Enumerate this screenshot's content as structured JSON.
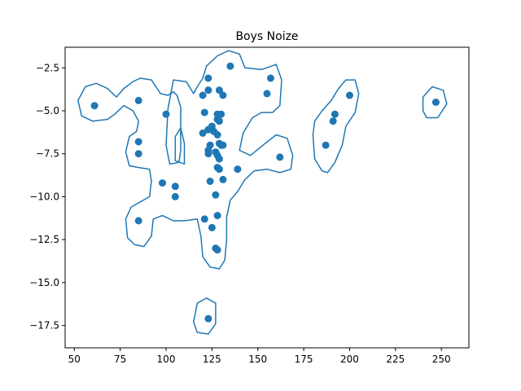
{
  "chart_data": {
    "type": "scatter",
    "title": "Boys Noize",
    "xlabel": "",
    "ylabel": "",
    "xlim": [
      45,
      265
    ],
    "ylim": [
      -18.8,
      -1.3
    ],
    "xticks": [
      50,
      75,
      100,
      125,
      150,
      175,
      200,
      225,
      250
    ],
    "yticks": [
      -2.5,
      -5.0,
      -7.5,
      -10.0,
      -12.5,
      -15.0,
      -17.5
    ],
    "xtick_labels": [
      "50",
      "75",
      "100",
      "125",
      "150",
      "175",
      "200",
      "225",
      "250"
    ],
    "ytick_labels": [
      "−2.5",
      "−5.0",
      "−7.5",
      "−10.0",
      "−12.5",
      "−15.0",
      "−17.5"
    ],
    "grid": false,
    "point_color": "#1f77b4",
    "contour_color": "#1f77b4",
    "points": [
      [
        61,
        -4.7
      ],
      [
        85,
        -4.4
      ],
      [
        85,
        -6.8
      ],
      [
        85,
        -7.5
      ],
      [
        85,
        -11.4
      ],
      [
        98,
        -9.2
      ],
      [
        100,
        -5.2
      ],
      [
        105,
        -9.4
      ],
      [
        105,
        -10.0
      ],
      [
        120,
        -4.1
      ],
      [
        120,
        -6.3
      ],
      [
        121,
        -5.1
      ],
      [
        121,
        -11.3
      ],
      [
        123,
        -3.1
      ],
      [
        123,
        -3.8
      ],
      [
        123,
        -6.1
      ],
      [
        123,
        -7.3
      ],
      [
        123,
        -7.5
      ],
      [
        123,
        -17.1
      ],
      [
        124,
        -7.0
      ],
      [
        124,
        -9.1
      ],
      [
        125,
        -5.9
      ],
      [
        125,
        -11.8
      ],
      [
        126,
        -6.2
      ],
      [
        127,
        -7.4
      ],
      [
        127,
        -9.9
      ],
      [
        127,
        -13.0
      ],
      [
        128,
        -5.2
      ],
      [
        128,
        -5.5
      ],
      [
        128,
        -6.4
      ],
      [
        128,
        -7.6
      ],
      [
        128,
        -8.3
      ],
      [
        128,
        -11.1
      ],
      [
        128,
        -13.1
      ],
      [
        129,
        -3.8
      ],
      [
        129,
        -5.6
      ],
      [
        129,
        -6.9
      ],
      [
        129,
        -7.8
      ],
      [
        129,
        -8.4
      ],
      [
        130,
        -5.2
      ],
      [
        130,
        -7.0
      ],
      [
        131,
        -4.1
      ],
      [
        131,
        -7.0
      ],
      [
        131,
        -9.0
      ],
      [
        135,
        -2.4
      ],
      [
        139,
        -8.4
      ],
      [
        155,
        -4.0
      ],
      [
        157,
        -3.1
      ],
      [
        162,
        -7.7
      ],
      [
        187,
        -7.0
      ],
      [
        191,
        -5.6
      ],
      [
        192,
        -5.2
      ],
      [
        200,
        -4.1
      ],
      [
        247,
        -4.5
      ]
    ],
    "contours": [
      [
        [
          102,
          -8.1
        ],
        [
          100,
          -7.0
        ],
        [
          101,
          -4.9
        ],
        [
          104,
          -3.2
        ],
        [
          111,
          -3.3
        ],
        [
          115,
          -4.0
        ],
        [
          117,
          -3.6
        ],
        [
          120,
          -3.1
        ],
        [
          122,
          -2.4
        ],
        [
          128,
          -1.8
        ],
        [
          134,
          -1.5
        ],
        [
          140,
          -1.7
        ],
        [
          143,
          -2.5
        ],
        [
          152,
          -2.6
        ],
        [
          160,
          -2.3
        ],
        [
          163,
          -3.2
        ],
        [
          162,
          -4.7
        ],
        [
          158,
          -5.1
        ],
        [
          152,
          -5.1
        ],
        [
          147,
          -5.4
        ],
        [
          142,
          -6.3
        ],
        [
          140,
          -7.3
        ],
        [
          146,
          -7.6
        ],
        [
          154,
          -6.9
        ],
        [
          160,
          -6.4
        ],
        [
          166,
          -6.6
        ],
        [
          169,
          -7.6
        ],
        [
          168,
          -8.4
        ],
        [
          162,
          -8.6
        ],
        [
          155,
          -8.4
        ],
        [
          148,
          -8.5
        ],
        [
          143,
          -9.0
        ],
        [
          139,
          -9.7
        ],
        [
          135,
          -10.2
        ],
        [
          133,
          -11.2
        ],
        [
          133,
          -12.5
        ],
        [
          132,
          -13.7
        ],
        [
          129,
          -14.2
        ],
        [
          124,
          -14.1
        ],
        [
          120,
          -13.5
        ],
        [
          119,
          -12.3
        ],
        [
          117,
          -11.3
        ],
        [
          110,
          -11.4
        ],
        [
          104,
          -11.4
        ],
        [
          98,
          -11.1
        ],
        [
          93,
          -11.3
        ],
        [
          92,
          -12.3
        ],
        [
          88,
          -12.9
        ],
        [
          83,
          -12.8
        ],
        [
          79,
          -12.4
        ],
        [
          78,
          -11.3
        ],
        [
          81,
          -10.6
        ],
        [
          86,
          -10.3
        ],
        [
          91,
          -10.0
        ],
        [
          92,
          -9.1
        ],
        [
          91,
          -8.4
        ],
        [
          85,
          -8.3
        ],
        [
          80,
          -8.2
        ],
        [
          78,
          -7.4
        ],
        [
          80,
          -6.5
        ],
        [
          84,
          -6.2
        ],
        [
          85,
          -5.6
        ],
        [
          82,
          -5.0
        ],
        [
          77,
          -4.7
        ],
        [
          72,
          -5.2
        ],
        [
          68,
          -5.5
        ],
        [
          60,
          -5.6
        ],
        [
          54,
          -5.3
        ],
        [
          52,
          -4.4
        ],
        [
          56,
          -3.6
        ],
        [
          62,
          -3.4
        ],
        [
          68,
          -3.7
        ],
        [
          73,
          -4.2
        ],
        [
          77,
          -3.7
        ],
        [
          82,
          -3.3
        ],
        [
          86,
          -3.1
        ],
        [
          92,
          -3.2
        ],
        [
          97,
          -4.0
        ],
        [
          101,
          -4.1
        ],
        [
          104,
          -3.9
        ],
        [
          106,
          -4.1
        ],
        [
          108,
          -4.8
        ],
        [
          108,
          -6.0
        ],
        [
          108,
          -7.3
        ],
        [
          107,
          -8.0
        ],
        [
          102,
          -8.1
        ]
      ],
      [
        [
          105,
          -7.9
        ],
        [
          105,
          -6.5
        ],
        [
          108,
          -6.0
        ],
        [
          110,
          -6.9
        ],
        [
          110,
          -8.1
        ],
        [
          105,
          -7.9
        ]
      ],
      [
        [
          185,
          -8.5
        ],
        [
          181,
          -7.8
        ],
        [
          180,
          -6.4
        ],
        [
          181,
          -5.6
        ],
        [
          185,
          -5.0
        ],
        [
          190,
          -4.4
        ],
        [
          194,
          -3.7
        ],
        [
          198,
          -3.2
        ],
        [
          203,
          -3.2
        ],
        [
          205,
          -4.0
        ],
        [
          203,
          -5.1
        ],
        [
          198,
          -5.9
        ],
        [
          196,
          -7.0
        ],
        [
          192,
          -8.0
        ],
        [
          188,
          -8.6
        ],
        [
          185,
          -8.5
        ]
      ],
      [
        [
          240,
          -5.0
        ],
        [
          240,
          -4.2
        ],
        [
          245,
          -3.6
        ],
        [
          251,
          -3.8
        ],
        [
          253,
          -4.6
        ],
        [
          248,
          -5.4
        ],
        [
          242,
          -5.4
        ],
        [
          240,
          -5.0
        ]
      ],
      [
        [
          115,
          -17.3
        ],
        [
          117,
          -16.2
        ],
        [
          122,
          -15.9
        ],
        [
          127,
          -16.2
        ],
        [
          127,
          -17.4
        ],
        [
          123,
          -18.0
        ],
        [
          117,
          -17.9
        ],
        [
          115,
          -17.3
        ]
      ]
    ]
  }
}
